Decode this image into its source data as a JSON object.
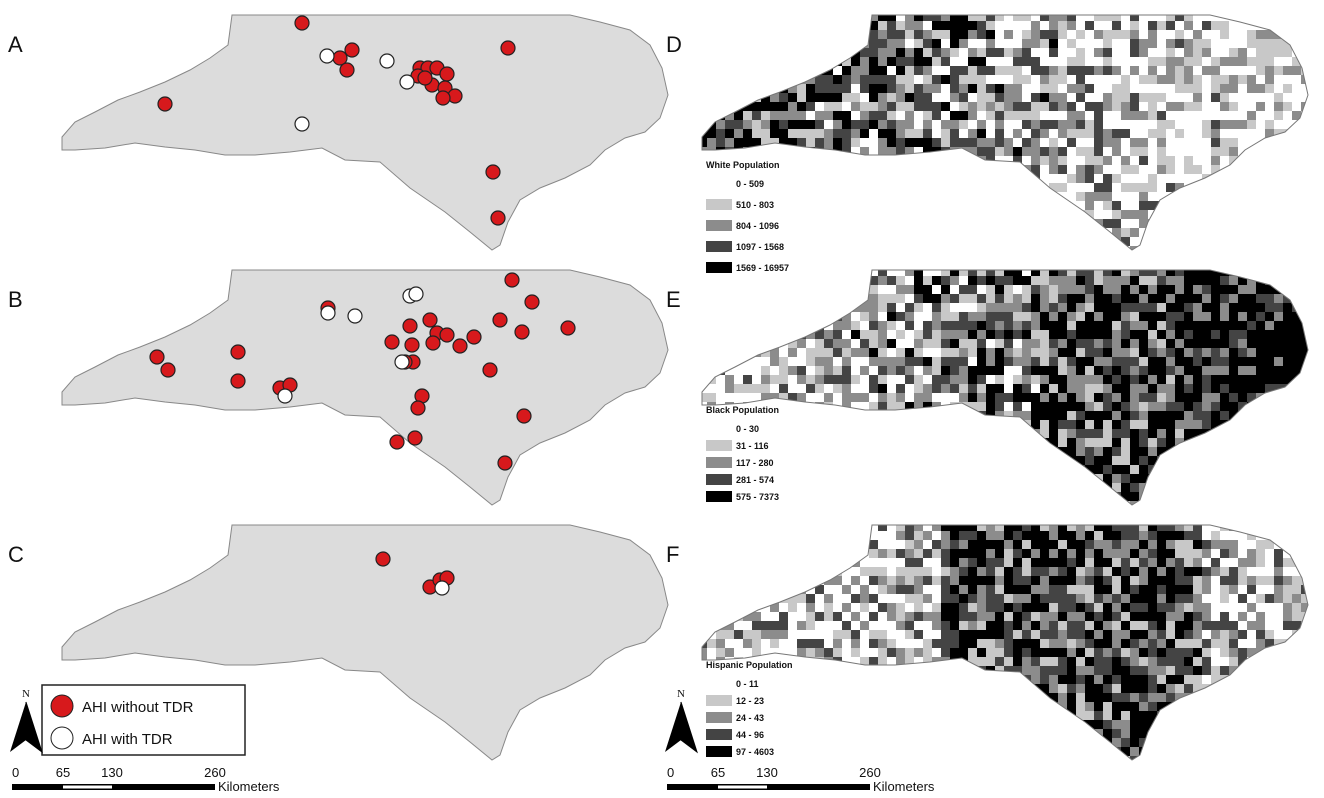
{
  "panel_labels": [
    "A",
    "B",
    "C",
    "D",
    "E",
    "F"
  ],
  "legend": {
    "items": [
      "AHI without TDR",
      "AHI with TDR"
    ]
  },
  "north": "N",
  "scale_bar": {
    "ticks": [
      0,
      65,
      130,
      260
    ],
    "unit": "Kilometers"
  },
  "choropleths": [
    {
      "title": "White Population",
      "classes": [
        "0 - 509",
        "510 - 803",
        "804 - 1096",
        "1097 - 1568",
        "1569 - 16957"
      ]
    },
    {
      "title": "Black Population",
      "classes": [
        "0 - 30",
        "31 - 116",
        "117 - 280",
        "281 - 574",
        "575 - 7373"
      ]
    },
    {
      "title": "Hispanic Population",
      "classes": [
        "0 - 11",
        "12 - 23",
        "24 - 43",
        "44 - 96",
        "97 - 4603"
      ]
    }
  ]
}
